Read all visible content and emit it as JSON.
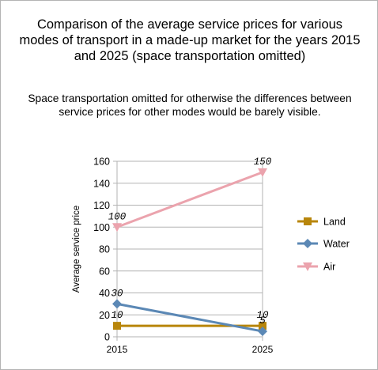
{
  "chart_data": {
    "type": "line",
    "title": "Comparison of the average service prices for various modes of transport in a made-up market for the years 2015 and 2025 (space transportation omitted)",
    "subtitle": "Space transportation omitted for otherwise the differences between service prices for other modes would be barely visible.",
    "xlabel": "",
    "ylabel": "Average service price",
    "categories": [
      "2015",
      "2025"
    ],
    "ylim": [
      0,
      160
    ],
    "yticks": [
      "0",
      "20",
      "40",
      "60",
      "80",
      "100",
      "120",
      "140",
      "160"
    ],
    "grid": true,
    "legend_position": "right",
    "series": [
      {
        "name": "Land",
        "values": [
          10,
          10
        ],
        "labels": [
          "10",
          "10"
        ],
        "color": "#b8860b",
        "marker": "square"
      },
      {
        "name": "Water",
        "values": [
          30,
          5
        ],
        "labels": [
          "30",
          "5"
        ],
        "color": "#5b88b5",
        "marker": "diamond"
      },
      {
        "name": "Air",
        "values": [
          100,
          150
        ],
        "labels": [
          "100",
          "150"
        ],
        "color": "#eba3ad",
        "marker": "triangle-down"
      }
    ]
  }
}
